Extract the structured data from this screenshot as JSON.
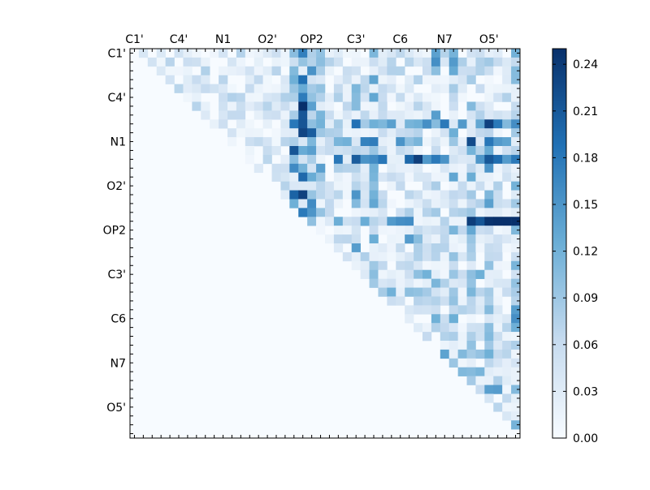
{
  "chart_data": {
    "type": "heatmap",
    "title": "",
    "xlabel": "",
    "ylabel": "",
    "tick_labels_x": [
      "C1'",
      "C4'",
      "N1",
      "O2'",
      "OP2",
      "C3'",
      "C6",
      "N7",
      "O5'"
    ],
    "tick_labels_y": [
      "C1'",
      "C4'",
      "N1",
      "O2'",
      "OP2",
      "C3'",
      "C6",
      "N7",
      "O5'"
    ],
    "matrix_size": 44,
    "upper_triangle_only": true,
    "x_tick_position": "top",
    "colormap": "Blues",
    "colors": {
      "low": "#f7fbff",
      "mid_light": "#c6dbef",
      "mid": "#6baed6",
      "mid_dark": "#2171b5",
      "high": "#08306b"
    },
    "colorbar": {
      "min": 0.0,
      "max": 0.25,
      "ticks": [
        0.0,
        0.03,
        0.06,
        0.09,
        0.12,
        0.15,
        0.18,
        0.21,
        0.24
      ],
      "tick_labels": [
        "0.00",
        "0.03",
        "0.06",
        "0.09",
        "0.12",
        "0.15",
        "0.18",
        "0.21",
        "0.24"
      ]
    },
    "grid": false
  }
}
